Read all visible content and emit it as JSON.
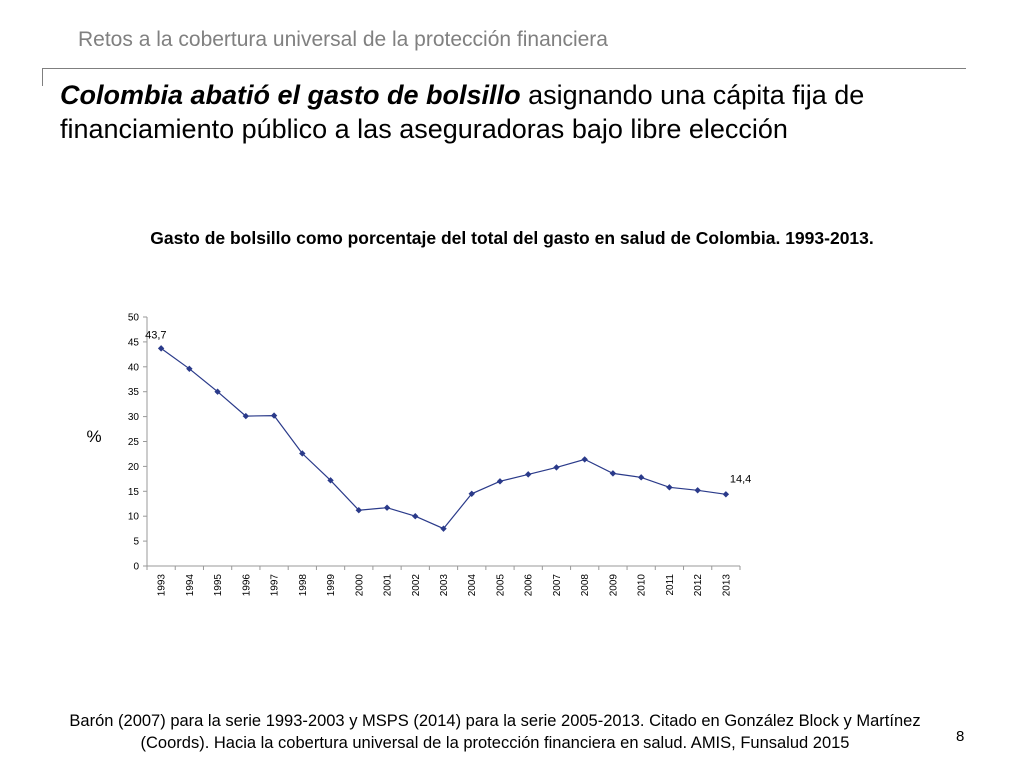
{
  "slide": {
    "header_title": "Retos a la cobertura universal de la protección financiera",
    "heading_emph": "Colombia abatió el gasto de bolsillo",
    "heading_rest": " asignando una cápita fija de financiamiento público a las aseguradoras bajo libre elección",
    "footer_source": "Barón (2007) para la serie 1993-2003 y MSPS (2014) para la serie 2005-2013.  Citado en González Block y Martínez (Coords). Hacia la cobertura universal de la protección financiera en salud. AMIS, Funsalud 2015",
    "page_number": "8"
  },
  "chart_data": {
    "type": "line",
    "title": "Gasto de bolsillo como porcentaje del total del gasto en salud de Colombia. 1993-2013.",
    "ylabel": "%",
    "xlabel": "",
    "ylim": [
      0,
      50
    ],
    "yticks": [
      "0",
      "5",
      "10",
      "15",
      "20",
      "25",
      "30",
      "35",
      "40",
      "45",
      "50"
    ],
    "grid": false,
    "legend": "none",
    "series_color": "#2a3a8a",
    "categories": [
      "1993",
      "1994",
      "1995",
      "1996",
      "1997",
      "1998",
      "1999",
      "2000",
      "2001",
      "2002",
      "2003",
      "2004",
      "2005",
      "2006",
      "2007",
      "2008",
      "2009",
      "2010",
      "2011",
      "2012",
      "2013"
    ],
    "values": [
      43.7,
      39.6,
      35.0,
      30.1,
      30.2,
      22.6,
      17.2,
      11.2,
      11.7,
      10.0,
      7.5,
      14.5,
      17.0,
      18.4,
      19.8,
      21.4,
      18.6,
      17.8,
      15.8,
      15.2,
      14.4
    ],
    "data_labels": [
      {
        "index": 0,
        "text": "43,7"
      },
      {
        "index": 20,
        "text": "14,4"
      }
    ]
  }
}
